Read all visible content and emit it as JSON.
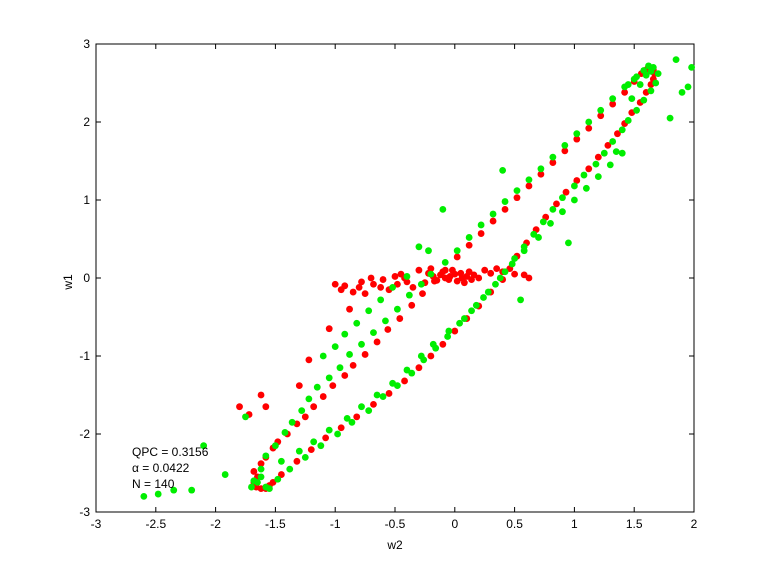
{
  "chart_data": {
    "type": "scatter",
    "xlabel": "w2",
    "ylabel": "w1",
    "xlim": [
      -3,
      2
    ],
    "ylim": [
      -3,
      3
    ],
    "xticks": [
      "-3",
      "-2.5",
      "-2",
      "-1.5",
      "-1",
      "-0.5",
      "0",
      "0.5",
      "1",
      "1.5",
      "2"
    ],
    "yticks": [
      "-3",
      "-2",
      "-1",
      "0",
      "1",
      "2",
      "3"
    ],
    "grid": false,
    "annotations": [
      "QPC = 0.3156",
      "α = 0.0422",
      "N = 140"
    ],
    "series": [
      {
        "color": "#ff0000",
        "points": [
          [
            -1.65,
            -2.55
          ],
          [
            -1.68,
            -2.62
          ],
          [
            -1.66,
            -2.68
          ],
          [
            -1.62,
            -2.7
          ],
          [
            -1.58,
            -2.7
          ],
          [
            -1.55,
            -2.66
          ],
          [
            -1.68,
            -2.48
          ],
          [
            -1.62,
            -2.38
          ],
          [
            -1.58,
            -2.3
          ],
          [
            -1.52,
            -2.18
          ],
          [
            -1.48,
            -2.1
          ],
          [
            -1.4,
            -2.0
          ],
          [
            -1.32,
            -1.87
          ],
          [
            -1.25,
            -1.78
          ],
          [
            -1.18,
            -1.65
          ],
          [
            -1.1,
            -1.52
          ],
          [
            -1.02,
            -1.38
          ],
          [
            -0.92,
            -1.25
          ],
          [
            -0.85,
            -1.12
          ],
          [
            -0.75,
            -0.98
          ],
          [
            -0.65,
            -0.82
          ],
          [
            -0.56,
            -0.66
          ],
          [
            -0.46,
            -0.52
          ],
          [
            -0.36,
            -0.35
          ],
          [
            -0.27,
            -0.2
          ],
          [
            -0.17,
            -0.04
          ],
          [
            -0.08,
            0.1
          ],
          [
            0.02,
            0.27
          ],
          [
            0.12,
            0.42
          ],
          [
            0.22,
            0.57
          ],
          [
            0.32,
            0.73
          ],
          [
            0.42,
            0.88
          ],
          [
            0.52,
            1.03
          ],
          [
            0.62,
            1.18
          ],
          [
            0.72,
            1.33
          ],
          [
            0.82,
            1.48
          ],
          [
            0.92,
            1.63
          ],
          [
            1.02,
            1.78
          ],
          [
            1.12,
            1.92
          ],
          [
            1.22,
            2.08
          ],
          [
            1.32,
            2.23
          ],
          [
            1.42,
            2.38
          ],
          [
            1.5,
            2.52
          ],
          [
            1.56,
            2.62
          ],
          [
            1.61,
            2.68
          ],
          [
            1.64,
            2.69
          ],
          [
            1.66,
            2.67
          ],
          [
            1.67,
            2.62
          ],
          [
            1.66,
            2.55
          ],
          [
            1.64,
            2.48
          ],
          [
            1.6,
            2.38
          ],
          [
            1.55,
            2.25
          ],
          [
            1.48,
            2.12
          ],
          [
            1.42,
            1.98
          ],
          [
            1.36,
            1.85
          ],
          [
            1.28,
            1.7
          ],
          [
            1.2,
            1.55
          ],
          [
            1.12,
            1.4
          ],
          [
            1.02,
            1.25
          ],
          [
            0.93,
            1.1
          ],
          [
            0.85,
            0.95
          ],
          [
            0.76,
            0.78
          ],
          [
            0.68,
            0.62
          ],
          [
            0.6,
            0.45
          ],
          [
            0.52,
            0.28
          ],
          [
            0.46,
            0.12
          ],
          [
            0.4,
            -0.02
          ],
          [
            0.3,
            -0.18
          ],
          [
            0.2,
            -0.36
          ],
          [
            0.1,
            -0.52
          ],
          [
            0.0,
            -0.68
          ],
          [
            -0.1,
            -0.85
          ],
          [
            -0.2,
            -1.0
          ],
          [
            -0.3,
            -1.15
          ],
          [
            -0.42,
            -1.32
          ],
          [
            -0.55,
            -1.48
          ],
          [
            -0.68,
            -1.62
          ],
          [
            -0.82,
            -1.78
          ],
          [
            -0.95,
            -1.92
          ],
          [
            -1.08,
            -2.05
          ],
          [
            -1.2,
            -2.2
          ],
          [
            -1.32,
            -2.35
          ],
          [
            -1.45,
            -2.52
          ],
          [
            -1.52,
            -2.62
          ],
          [
            -1.72,
            -1.75
          ],
          [
            -1.8,
            -1.65
          ],
          [
            -1.62,
            -1.5
          ],
          [
            -1.58,
            -1.65
          ],
          [
            -1.3,
            -1.38
          ],
          [
            -1.22,
            -1.05
          ],
          [
            -1.05,
            -0.65
          ],
          [
            -0.88,
            -0.4
          ],
          [
            -0.75,
            -0.2
          ],
          [
            -0.6,
            -0.02
          ],
          [
            -0.45,
            0.05
          ],
          [
            -0.3,
            0.1
          ],
          [
            -0.2,
            0.12
          ],
          [
            -0.1,
            0.08
          ],
          [
            0.0,
            0.05
          ],
          [
            0.1,
            0.02
          ],
          [
            0.2,
            0.0
          ],
          [
            -0.92,
            -0.1
          ],
          [
            -0.85,
            -0.18
          ],
          [
            -0.78,
            -0.05
          ],
          [
            -0.7,
            0.0
          ],
          [
            -0.62,
            -0.12
          ],
          [
            -0.55,
            -0.15
          ],
          [
            -0.48,
            -0.08
          ],
          [
            -0.4,
            -0.05
          ],
          [
            -0.35,
            -0.12
          ],
          [
            -0.25,
            -0.06
          ],
          [
            -0.15,
            -0.03
          ],
          [
            -0.05,
            -0.02
          ],
          [
            0.05,
            0.06
          ],
          [
            0.12,
            0.08
          ],
          [
            -0.08,
            0.0
          ],
          [
            0.02,
            -0.04
          ],
          [
            0.08,
            -0.06
          ],
          [
            -0.02,
            0.1
          ],
          [
            -0.18,
            0.02
          ],
          [
            0.16,
            0.04
          ],
          [
            0.3,
            0.06
          ],
          [
            0.4,
            0.08
          ],
          [
            0.5,
            0.05
          ],
          [
            0.58,
            0.04
          ],
          [
            0.62,
            0.0
          ],
          [
            -0.5,
            0.02
          ],
          [
            -0.42,
            0.0
          ],
          [
            -0.68,
            -0.08
          ],
          [
            -0.8,
            -0.12
          ],
          [
            -0.95,
            -0.15
          ],
          [
            -1.0,
            -0.08
          ],
          [
            -0.12,
            0.04
          ],
          [
            -0.04,
            0.02
          ],
          [
            0.06,
            0.0
          ],
          [
            0.14,
            -0.02
          ],
          [
            -0.22,
            0.06
          ],
          [
            0.25,
            0.1
          ],
          [
            0.35,
            0.12
          ]
        ]
      },
      {
        "color": "#00ee00",
        "points": [
          [
            -2.6,
            -2.8
          ],
          [
            -2.48,
            -2.77
          ],
          [
            -2.35,
            -2.72
          ],
          [
            -2.2,
            -2.72
          ],
          [
            -2.1,
            -2.15
          ],
          [
            -1.92,
            -2.52
          ],
          [
            -1.75,
            -1.78
          ],
          [
            -1.7,
            -2.68
          ],
          [
            -1.65,
            -2.62
          ],
          [
            -1.62,
            -2.45
          ],
          [
            -1.58,
            -2.28
          ],
          [
            -1.5,
            -2.15
          ],
          [
            -1.42,
            -1.98
          ],
          [
            -1.36,
            -1.85
          ],
          [
            -1.28,
            -1.7
          ],
          [
            -1.22,
            -1.55
          ],
          [
            -1.15,
            -1.4
          ],
          [
            -1.05,
            -1.28
          ],
          [
            -0.96,
            -1.15
          ],
          [
            -0.88,
            -0.98
          ],
          [
            -0.78,
            -0.85
          ],
          [
            -0.68,
            -0.7
          ],
          [
            -0.58,
            -0.55
          ],
          [
            -0.48,
            -0.4
          ],
          [
            -0.38,
            -0.22
          ],
          [
            -0.28,
            -0.08
          ],
          [
            -0.2,
            0.05
          ],
          [
            -0.08,
            0.2
          ],
          [
            0.02,
            0.35
          ],
          [
            0.12,
            0.52
          ],
          [
            0.22,
            0.68
          ],
          [
            0.32,
            0.82
          ],
          [
            0.42,
            0.98
          ],
          [
            0.52,
            1.12
          ],
          [
            0.62,
            1.26
          ],
          [
            0.72,
            1.4
          ],
          [
            0.82,
            1.55
          ],
          [
            0.92,
            1.7
          ],
          [
            1.02,
            1.85
          ],
          [
            1.12,
            2.0
          ],
          [
            1.22,
            2.15
          ],
          [
            1.32,
            2.3
          ],
          [
            1.42,
            2.45
          ],
          [
            1.52,
            2.58
          ],
          [
            1.58,
            2.66
          ],
          [
            1.62,
            2.72
          ],
          [
            1.66,
            2.7
          ],
          [
            1.7,
            2.62
          ],
          [
            1.68,
            2.5
          ],
          [
            1.64,
            2.4
          ],
          [
            1.58,
            2.28
          ],
          [
            1.52,
            2.15
          ],
          [
            1.45,
            2.02
          ],
          [
            1.4,
            1.9
          ],
          [
            1.32,
            1.75
          ],
          [
            1.25,
            1.6
          ],
          [
            1.18,
            1.46
          ],
          [
            1.08,
            1.32
          ],
          [
            1.0,
            1.18
          ],
          [
            0.9,
            1.03
          ],
          [
            0.82,
            0.88
          ],
          [
            0.74,
            0.72
          ],
          [
            0.66,
            0.56
          ],
          [
            0.58,
            0.4
          ],
          [
            0.5,
            0.25
          ],
          [
            0.42,
            0.08
          ],
          [
            0.34,
            -0.08
          ],
          [
            0.24,
            -0.25
          ],
          [
            0.14,
            -0.42
          ],
          [
            0.04,
            -0.58
          ],
          [
            -0.06,
            -0.75
          ],
          [
            -0.16,
            -0.9
          ],
          [
            -0.26,
            -1.05
          ],
          [
            -0.36,
            -1.22
          ],
          [
            -0.48,
            -1.38
          ],
          [
            -0.6,
            -1.52
          ],
          [
            -0.72,
            -1.7
          ],
          [
            -0.86,
            -1.85
          ],
          [
            -0.98,
            -2.0
          ],
          [
            -1.12,
            -2.15
          ],
          [
            -1.25,
            -2.3
          ],
          [
            -1.38,
            -2.45
          ],
          [
            -1.48,
            -2.58
          ],
          [
            -1.58,
            -2.68
          ],
          [
            -1.55,
            -2.7
          ],
          [
            1.85,
            2.8
          ],
          [
            1.95,
            2.45
          ],
          [
            1.98,
            2.7
          ],
          [
            1.9,
            2.38
          ],
          [
            1.8,
            2.05
          ],
          [
            0.95,
            0.45
          ],
          [
            0.55,
            -0.28
          ],
          [
            -0.3,
            0.4
          ],
          [
            -0.22,
            0.35
          ],
          [
            -0.1,
            0.88
          ],
          [
            0.4,
            1.38
          ],
          [
            1.35,
            1.62
          ],
          [
            1.48,
            2.3
          ],
          [
            1.55,
            2.48
          ],
          [
            1.6,
            2.6
          ],
          [
            1.64,
            2.65
          ],
          [
            -1.62,
            -2.55
          ],
          [
            -1.68,
            -2.6
          ],
          [
            -1.45,
            -2.35
          ],
          [
            -1.3,
            -2.22
          ],
          [
            -1.18,
            -2.1
          ],
          [
            -1.05,
            -1.95
          ],
          [
            -0.9,
            -1.8
          ],
          [
            -0.78,
            -1.65
          ],
          [
            -0.65,
            -1.5
          ],
          [
            -0.52,
            -1.35
          ],
          [
            -0.4,
            -1.18
          ],
          [
            -0.28,
            -1.0
          ],
          [
            -0.18,
            -0.85
          ],
          [
            -0.05,
            -0.68
          ],
          [
            0.08,
            -0.52
          ],
          [
            0.18,
            -0.35
          ],
          [
            0.28,
            -0.18
          ],
          [
            0.38,
            0.0
          ],
          [
            0.48,
            0.18
          ],
          [
            0.58,
            0.35
          ],
          [
            0.7,
            0.52
          ],
          [
            0.8,
            0.7
          ],
          [
            0.9,
            0.85
          ],
          [
            1.0,
            1.0
          ],
          [
            1.1,
            1.15
          ],
          [
            1.2,
            1.3
          ],
          [
            1.3,
            1.45
          ],
          [
            1.4,
            1.6
          ],
          [
            -1.1,
            -1.0
          ],
          [
            -1.0,
            -0.88
          ],
          [
            -0.92,
            -0.72
          ],
          [
            -0.82,
            -0.58
          ],
          [
            -0.72,
            -0.42
          ],
          [
            -0.62,
            -0.28
          ],
          [
            -0.52,
            -0.12
          ],
          [
            -0.4,
            0.02
          ],
          [
            1.5,
            2.55
          ],
          [
            1.45,
            2.48
          ]
        ]
      }
    ]
  }
}
